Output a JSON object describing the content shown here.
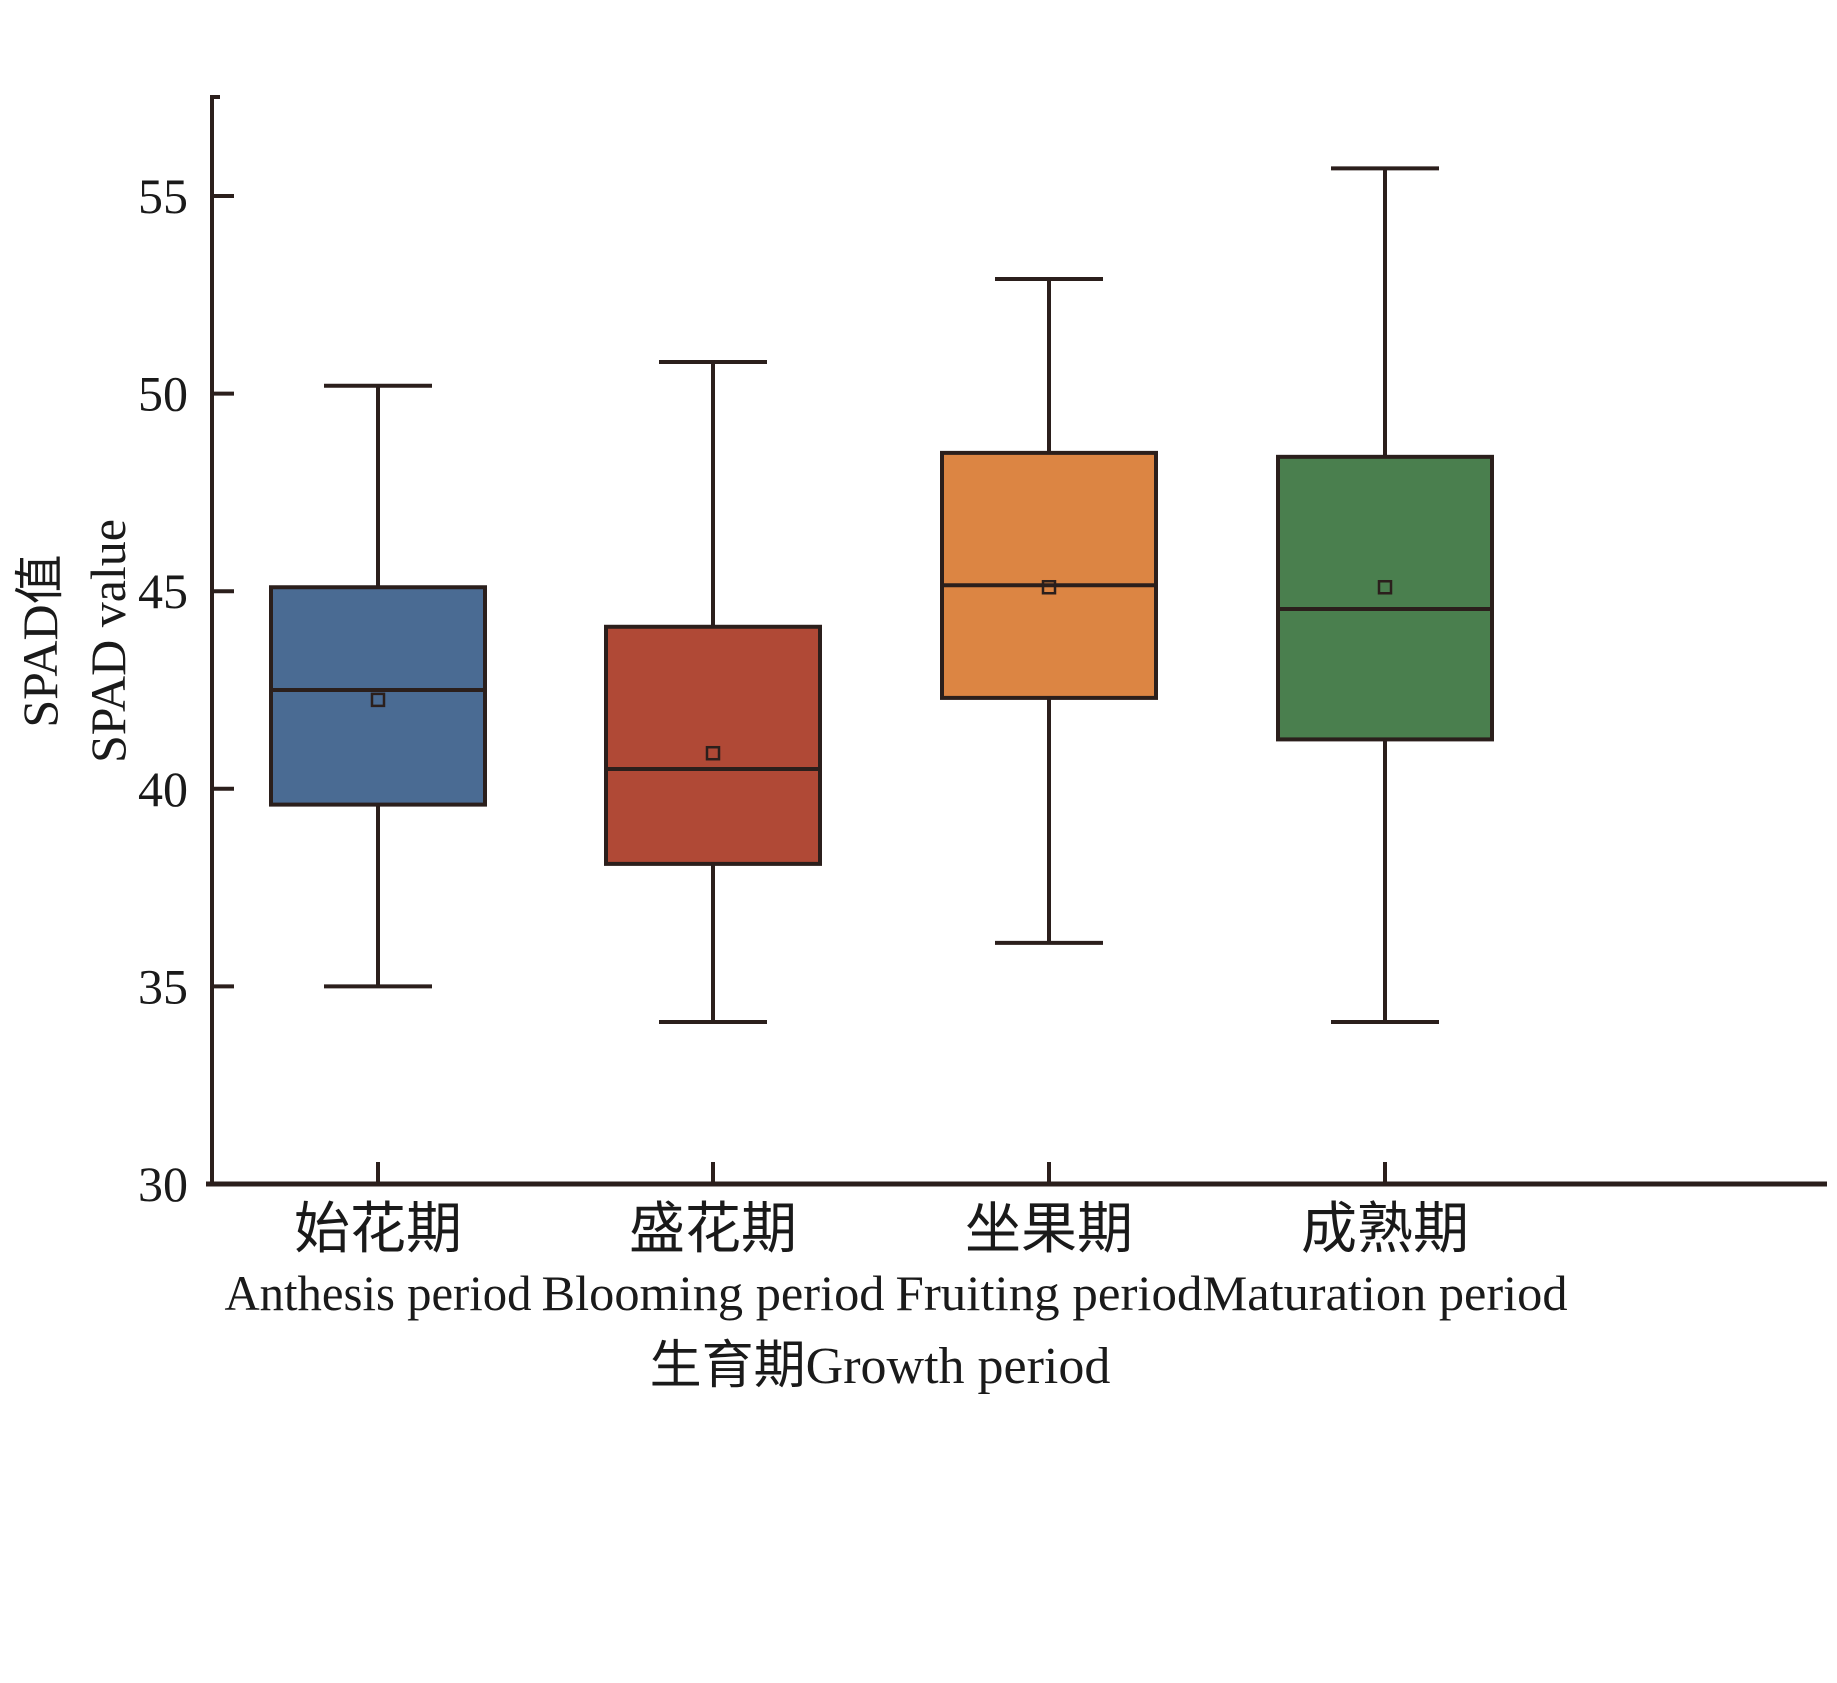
{
  "chart_data": {
    "type": "box",
    "title": "",
    "xlabel": "生育期Growth period",
    "ylabel_cn": "SPAD值",
    "ylabel_en": "SPAD value",
    "ylim": [
      30,
      57.5
    ],
    "yticks": [
      30,
      35,
      40,
      45,
      50,
      55
    ],
    "ytick_labels": [
      "30",
      "35",
      "40",
      "45",
      "50",
      "55"
    ],
    "grid": false,
    "legend": "none",
    "categories": [
      {
        "cn": "始花期",
        "en": "Anthesis period"
      },
      {
        "cn": "盛花期",
        "en": "Blooming period"
      },
      {
        "cn": "坐果期",
        "en": "Fruiting period"
      },
      {
        "cn": "成熟期",
        "en": "Maturation period"
      }
    ],
    "series": [
      {
        "name": "Anthesis period",
        "color": "#4a6b93",
        "whisker_low": 35.0,
        "q1": 39.6,
        "median": 42.5,
        "q3": 45.1,
        "whisker_high": 50.2,
        "mean": 42.25
      },
      {
        "name": "Blooming period",
        "color": "#b04936",
        "whisker_low": 34.1,
        "q1": 38.1,
        "median": 40.5,
        "q3": 44.1,
        "whisker_high": 50.8,
        "mean": 40.9
      },
      {
        "name": "Fruiting period",
        "color": "#dc8543",
        "whisker_low": 36.1,
        "q1": 42.3,
        "median": 45.15,
        "q3": 48.5,
        "whisker_high": 52.9,
        "mean": 45.1
      },
      {
        "name": "Maturation period",
        "color": "#4a7f4e",
        "whisker_low": 34.1,
        "q1": 41.25,
        "median": 44.55,
        "q3": 48.4,
        "whisker_high": 55.7,
        "mean": 45.1
      }
    ],
    "line_color": "#2b1f1c"
  }
}
